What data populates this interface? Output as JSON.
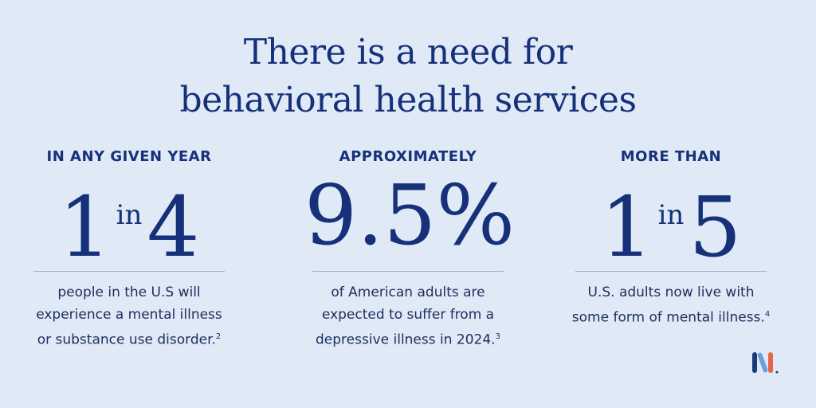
{
  "header": {
    "title_lines": [
      "There is a need for",
      "behavioral health services"
    ]
  },
  "stats": [
    {
      "label": "IN ANY GIVEN YEAR",
      "big": [
        "1",
        "in",
        "4"
      ],
      "description_lines": [
        "people in the U.S will",
        "experience a mental illness",
        "or substance use disorder."
      ],
      "footnote": "2"
    },
    {
      "label": "APPROXIMATELY",
      "big": [
        "9.5%"
      ],
      "description_lines": [
        "of American adults are",
        "expected to suffer from a",
        "depressive illness in 2024."
      ],
      "footnote": "3"
    },
    {
      "label": "MORE THAN",
      "big": [
        "1",
        "in",
        "5"
      ],
      "description_lines": [
        "U.S. adults now live with",
        "some form of mental illness."
      ],
      "footnote": "4"
    }
  ]
}
